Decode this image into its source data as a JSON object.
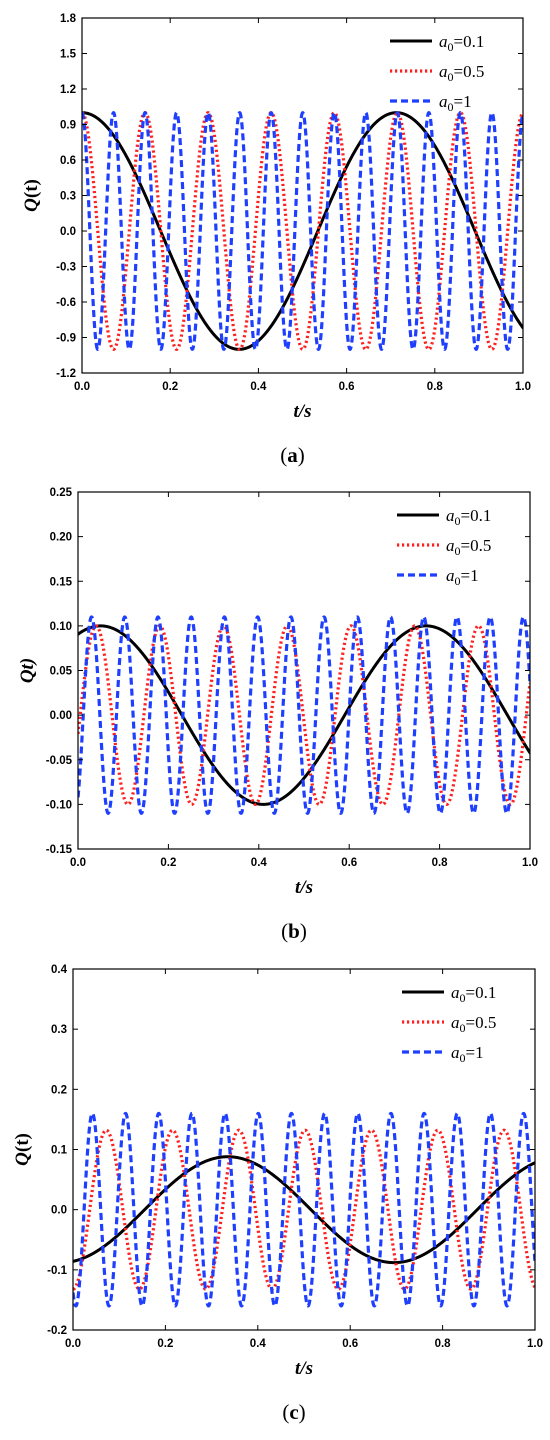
{
  "chart_data": [
    {
      "panel": "a",
      "type": "line",
      "ylabel": "Q(t)",
      "ylabel_main": "Q",
      "ylabel_paren": "(t)",
      "xlabel": "t/s",
      "xlim": [
        0,
        1
      ],
      "ylim": [
        -1.2,
        1.8
      ],
      "xticks": [
        "0.0",
        "0.2",
        "0.4",
        "0.6",
        "0.8",
        "1.0"
      ],
      "yticks": [
        "-1.2",
        "-0.9",
        "-0.6",
        "-0.3",
        "0.0",
        "0.3",
        "0.6",
        "0.9",
        "1.2",
        "1.5",
        "1.8"
      ],
      "legend_position": "top-right",
      "series": [
        {
          "legend_sub": "0",
          "legend_value": "=0.1",
          "label": "a0=0.1",
          "color": "#000000",
          "style": "solid",
          "amplitude": 1.0,
          "period_s": 0.713,
          "x": [
            0,
            0.1,
            0.2,
            0.3,
            0.357,
            0.4,
            0.5,
            0.6,
            0.713,
            0.8,
            0.9,
            1.0
          ],
          "y": [
            1.0,
            0.63,
            -0.2,
            -0.93,
            -1.0,
            -0.96,
            -0.61,
            0.27,
            1.0,
            0.84,
            0.1,
            -0.8
          ]
        },
        {
          "legend_sub": "0",
          "legend_value": "=0.5",
          "label": "a0=0.5",
          "color": "#ff2020",
          "style": "dotted",
          "amplitude": 1.0,
          "period_s": 0.143,
          "x": [
            0,
            0.0715,
            0.143,
            0.2145,
            0.286,
            0.3575,
            0.429,
            0.5005,
            0.572,
            0.6435,
            0.715,
            0.7865,
            0.858,
            0.9295,
            1.0
          ],
          "y": [
            1.0,
            -1.0,
            1.0,
            -1.0,
            1.0,
            -1.0,
            1.0,
            -1.0,
            1.0,
            -1.0,
            1.0,
            -1.0,
            1.0,
            -1.0,
            1.0
          ]
        },
        {
          "legend_sub": "0",
          "legend_value": "=1",
          "label": "a0=1",
          "color": "#1f3fff",
          "style": "dashed",
          "amplitude": 1.0,
          "period_s": 0.0715,
          "x": [
            0,
            0.0358,
            0.0715,
            0.1073,
            0.143,
            0.25,
            0.5,
            0.75,
            1.0
          ],
          "y": [
            1.0,
            -1.0,
            1.0,
            -1.0,
            1.0,
            -1.0,
            1.0,
            -1.0,
            1.0
          ]
        }
      ]
    },
    {
      "panel": "b",
      "type": "line",
      "ylabel": "Qt)",
      "ylabel_main": "Qt)",
      "ylabel_paren": "",
      "xlabel": "t/s",
      "xlim": [
        0,
        1
      ],
      "ylim": [
        -0.15,
        0.25
      ],
      "xticks": [
        "0.0",
        "0.2",
        "0.4",
        "0.6",
        "0.8",
        "1.0"
      ],
      "yticks": [
        "-0.15",
        "-0.10",
        "-0.05",
        "0.00",
        "0.05",
        "0.10",
        "0.15",
        "0.20",
        "0.25"
      ],
      "legend_position": "top-right",
      "series": [
        {
          "legend_sub": "0",
          "legend_value": "=0.1",
          "label": "a0=0.1",
          "color": "#000000",
          "style": "solid",
          "amplitude": 0.1,
          "peak_t": 0.05,
          "period_s": 0.72,
          "x": [
            0,
            0.05,
            0.2,
            0.41,
            0.6,
            0.77,
            1.0
          ],
          "y": [
            0.09,
            0.1,
            0.02,
            -0.1,
            -0.01,
            0.1,
            -0.04
          ]
        },
        {
          "legend_sub": "0",
          "legend_value": "=0.5",
          "label": "a0=0.5",
          "color": "#ff2020",
          "style": "dotted",
          "amplitude": 0.1,
          "peak_t": 0.04,
          "period_s": 0.141,
          "x": [
            0,
            0.04,
            0.11,
            0.181,
            0.252,
            0.322,
            0.393,
            0.464,
            0.534,
            0.605,
            0.675,
            0.746,
            0.816,
            0.887,
            0.957,
            1.0
          ],
          "y": [
            0.03,
            0.1,
            -0.1,
            0.1,
            -0.1,
            0.1,
            -0.1,
            0.1,
            -0.1,
            0.1,
            -0.1,
            0.1,
            -0.1,
            0.1,
            -0.1,
            0.03
          ]
        },
        {
          "legend_sub": "0",
          "legend_value": "=1",
          "label": "a0=1",
          "color": "#1f3fff",
          "style": "dashed",
          "amplitude": 0.11,
          "peak_t": 0.03,
          "period_s": 0.0735,
          "x": [
            0,
            0.03,
            0.0668,
            0.1035,
            0.25,
            0.5,
            0.75,
            1.0
          ],
          "y": [
            0.02,
            0.11,
            -0.11,
            0.11,
            -0.08,
            0.05,
            -0.1,
            0.08
          ]
        }
      ]
    },
    {
      "panel": "c",
      "type": "line",
      "ylabel": "Q(t)",
      "ylabel_main": "Q",
      "ylabel_paren": "(t)",
      "xlabel": "t/s",
      "xlim": [
        0,
        1
      ],
      "ylim": [
        -0.2,
        0.4
      ],
      "xticks": [
        "0.0",
        "0.2",
        "0.4",
        "0.6",
        "0.8",
        "1.0"
      ],
      "yticks": [
        "-0.2",
        "-0.1",
        "0.0",
        "0.1",
        "0.2",
        "0.3",
        "0.4"
      ],
      "legend_position": "top-right",
      "series": [
        {
          "legend_sub": "0",
          "legend_value": "=0.1",
          "label": "a0=0.1",
          "color": "#000000",
          "style": "solid",
          "amplitude": 0.088,
          "peak_t": 0.335,
          "period_s": 0.72,
          "x": [
            0,
            0.15,
            0.335,
            0.5,
            0.695,
            0.85,
            1.0
          ],
          "y": [
            -0.084,
            -0.02,
            0.088,
            0.02,
            -0.088,
            -0.02,
            0.079
          ]
        },
        {
          "legend_sub": "0",
          "legend_value": "=0.5",
          "label": "a0=0.5",
          "color": "#ff2020",
          "style": "dotted",
          "amplitude": 0.132,
          "peak_t": 0.072,
          "period_s": 0.1435,
          "x": [
            0,
            0.072,
            0.1438,
            0.2155,
            0.2873,
            0.359,
            0.4308,
            0.5025,
            0.5743,
            0.646,
            0.7178,
            0.7895,
            0.8613,
            0.933,
            1.0
          ],
          "y": [
            -0.13,
            0.132,
            -0.132,
            0.132,
            -0.132,
            0.132,
            -0.132,
            0.132,
            -0.132,
            0.132,
            -0.132,
            0.132,
            -0.132,
            0.132,
            -0.13
          ]
        },
        {
          "legend_sub": "0",
          "legend_value": "=1",
          "label": "a0=1",
          "color": "#1f3fff",
          "style": "dashed",
          "amplitude": 0.16,
          "peak_t": 0.042,
          "period_s": 0.0718,
          "x": [
            0,
            0.042,
            0.0779,
            0.1138,
            0.25,
            0.5,
            0.75,
            1.0
          ],
          "y": [
            -0.1,
            0.16,
            -0.16,
            0.16,
            0.1,
            -0.05,
            -0.12,
            0.14
          ]
        }
      ]
    }
  ]
}
